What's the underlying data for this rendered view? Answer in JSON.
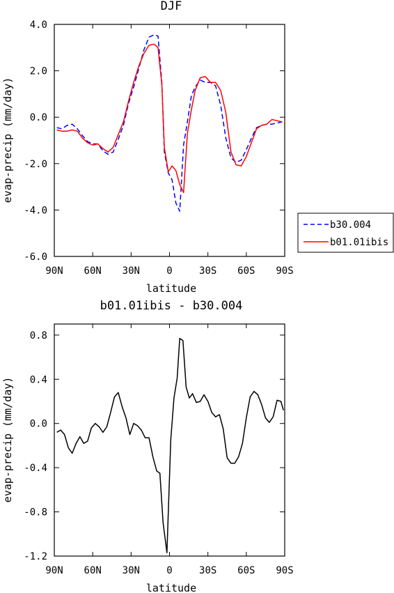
{
  "chart_data": [
    {
      "type": "line",
      "title": "DJF",
      "xlabel": "latitude",
      "ylabel": "evap-precip (mm/day)",
      "xlim": [
        90,
        -90
      ],
      "ylim": [
        -6.0,
        4.0
      ],
      "x_ticks": [
        {
          "value": 90,
          "label": "90N"
        },
        {
          "value": 60,
          "label": "60N"
        },
        {
          "value": 30,
          "label": "30N"
        },
        {
          "value": 0,
          "label": "0"
        },
        {
          "value": -30,
          "label": "30S"
        },
        {
          "value": -60,
          "label": "60S"
        },
        {
          "value": -90,
          "label": "90S"
        }
      ],
      "y_ticks": [
        {
          "value": 4,
          "label": "4.0"
        },
        {
          "value": 2,
          "label": "2.0"
        },
        {
          "value": 0,
          "label": "0.0"
        },
        {
          "value": -2,
          "label": "-2.0"
        },
        {
          "value": -4,
          "label": "-4.0"
        },
        {
          "value": -6,
          "label": "-6.0"
        }
      ],
      "legend": "right",
      "series": [
        {
          "name": "b30.004",
          "color": "#0000ff",
          "dash": "dashed",
          "x": [
            88,
            84,
            80,
            76,
            72,
            68,
            64,
            60,
            56,
            52,
            48,
            44,
            40,
            36,
            32,
            28,
            24,
            20,
            16,
            12,
            9,
            6,
            4,
            1,
            -2,
            -5,
            -8,
            -11,
            -14,
            -17,
            -20,
            -24,
            -28,
            -32,
            -36,
            -40,
            -44,
            -48,
            -52,
            -56,
            -60,
            -64,
            -68,
            -72,
            -76,
            -80,
            -84,
            -88
          ],
          "y": [
            -0.45,
            -0.5,
            -0.35,
            -0.3,
            -0.5,
            -0.8,
            -1.05,
            -1.15,
            -1.15,
            -1.45,
            -1.6,
            -1.5,
            -0.95,
            -0.35,
            0.6,
            1.3,
            2.1,
            2.9,
            3.45,
            3.55,
            3.5,
            1.5,
            -1.5,
            -2.4,
            -2.7,
            -3.7,
            -4.05,
            -1.2,
            -0.2,
            0.9,
            1.3,
            1.6,
            1.5,
            1.5,
            1.35,
            0.5,
            -0.9,
            -1.75,
            -1.95,
            -1.85,
            -1.4,
            -0.9,
            -0.45,
            -0.35,
            -0.3,
            -0.3,
            -0.25,
            -0.2
          ]
        },
        {
          "name": "b01.01ibis",
          "color": "#ff0000",
          "dash": "solid",
          "x": [
            88,
            84,
            80,
            76,
            72,
            68,
            64,
            60,
            56,
            52,
            48,
            44,
            40,
            36,
            32,
            28,
            24,
            20,
            16,
            12,
            9,
            6,
            4,
            1,
            -2,
            -5,
            -8,
            -11,
            -14,
            -17,
            -20,
            -24,
            -28,
            -32,
            -36,
            -40,
            -44,
            -48,
            -52,
            -56,
            -60,
            -64,
            -68,
            -72,
            -76,
            -80,
            -84,
            -88
          ],
          "y": [
            -0.55,
            -0.6,
            -0.6,
            -0.55,
            -0.6,
            -0.9,
            -1.1,
            -1.2,
            -1.15,
            -1.35,
            -1.5,
            -1.3,
            -0.75,
            -0.2,
            0.7,
            1.5,
            2.2,
            2.75,
            3.1,
            3.15,
            3.0,
            1.4,
            -1.3,
            -2.35,
            -2.1,
            -2.3,
            -2.9,
            -3.25,
            -0.7,
            0.3,
            1.15,
            1.7,
            1.75,
            1.5,
            1.5,
            1.15,
            0.2,
            -1.5,
            -2.05,
            -2.1,
            -1.7,
            -1.1,
            -0.5,
            -0.35,
            -0.3,
            -0.1,
            -0.15,
            -0.2
          ]
        }
      ]
    },
    {
      "type": "line",
      "title": "b01.01ibis - b30.004",
      "xlabel": "latitude",
      "ylabel": "evap-precip (mm/day)",
      "xlim": [
        90,
        -90
      ],
      "ylim": [
        -1.2,
        0.9
      ],
      "x_ticks": [
        {
          "value": 90,
          "label": "90N"
        },
        {
          "value": 60,
          "label": "60N"
        },
        {
          "value": 30,
          "label": "30N"
        },
        {
          "value": 0,
          "label": "0"
        },
        {
          "value": -30,
          "label": "30S"
        },
        {
          "value": -60,
          "label": "60S"
        },
        {
          "value": -90,
          "label": "90S"
        }
      ],
      "y_ticks": [
        {
          "value": 0.8,
          "label": "0.8"
        },
        {
          "value": 0.4,
          "label": "0.4"
        },
        {
          "value": 0.0,
          "label": "0.0"
        },
        {
          "value": -0.4,
          "label": "-0.4"
        },
        {
          "value": -0.8,
          "label": "-0.8"
        },
        {
          "value": -1.2,
          "label": "-1.2"
        }
      ],
      "series": [
        {
          "color": "#000000",
          "dash": "solid",
          "x": [
            88,
            85,
            82,
            79,
            76,
            73,
            70,
            67,
            64,
            61,
            58,
            55,
            52,
            49,
            46,
            43,
            40,
            37,
            34,
            31,
            28,
            25,
            22,
            19,
            16,
            13,
            10,
            7.5,
            5,
            2,
            -1,
            -3.5,
            -6,
            -8,
            -10.5,
            -13,
            -15.5,
            -18,
            -21,
            -24,
            -27,
            -30,
            -33,
            -36,
            -39,
            -42,
            -45,
            -48,
            -51,
            -54,
            -57,
            -60,
            -63,
            -66,
            -69,
            -72,
            -75,
            -78,
            -81,
            -84,
            -87,
            -89
          ],
          "y": [
            -0.08,
            -0.06,
            -0.1,
            -0.22,
            -0.27,
            -0.18,
            -0.12,
            -0.18,
            -0.16,
            -0.04,
            0.0,
            -0.03,
            -0.08,
            -0.03,
            0.1,
            0.24,
            0.28,
            0.15,
            0.05,
            -0.1,
            0.0,
            -0.02,
            -0.06,
            -0.13,
            -0.13,
            -0.3,
            -0.43,
            -0.45,
            -0.9,
            -1.17,
            -0.15,
            0.23,
            0.41,
            0.77,
            0.75,
            0.33,
            0.23,
            0.27,
            0.19,
            0.2,
            0.26,
            0.2,
            0.1,
            0.06,
            0.08,
            -0.05,
            -0.31,
            -0.36,
            -0.36,
            -0.3,
            -0.18,
            0.05,
            0.24,
            0.29,
            0.26,
            0.17,
            0.05,
            0.01,
            0.06,
            0.21,
            0.2,
            0.12
          ]
        }
      ]
    }
  ]
}
